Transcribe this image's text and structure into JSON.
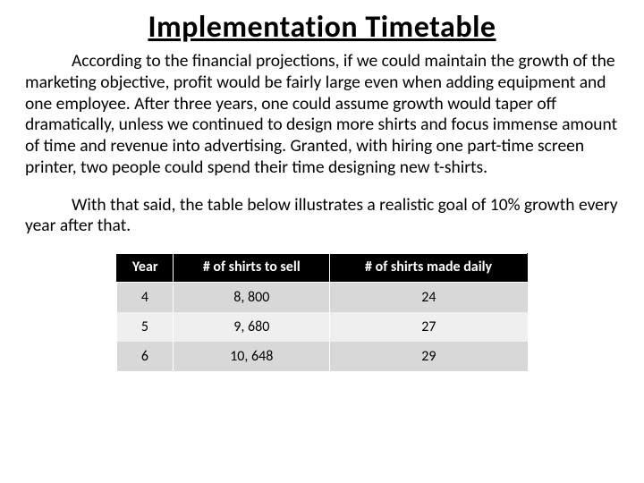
{
  "title": "Implementation Timetable",
  "paragraph1": "According to the financial projections, if we could maintain the growth of the marketing objective, profit would be fairly large even when adding equipment and one employee. After three years, one could assume growth would taper off dramatically, unless we continued to design more shirts and focus immense amount of time and revenue into advertising. Granted, with hiring one part-time screen printer, two people could spend their time designing new t-shirts.",
  "paragraph2": "With that said, the table below illustrates a realistic goal of 10% growth every year after that.",
  "table": {
    "columns": [
      "Year",
      "# of shirts to sell",
      "# of shirts made daily"
    ],
    "rows": [
      [
        "4",
        "8, 800",
        "24"
      ],
      [
        "5",
        "9, 680",
        "27"
      ],
      [
        "6",
        "10, 648",
        "29"
      ]
    ],
    "header_bg": "#000000",
    "header_fg": "#ffffff",
    "row_even_bg": "#d8d8d8",
    "row_odd_bg": "#efefef",
    "font_size": 16
  },
  "colors": {
    "background": "#ffffff",
    "text": "#000000"
  }
}
